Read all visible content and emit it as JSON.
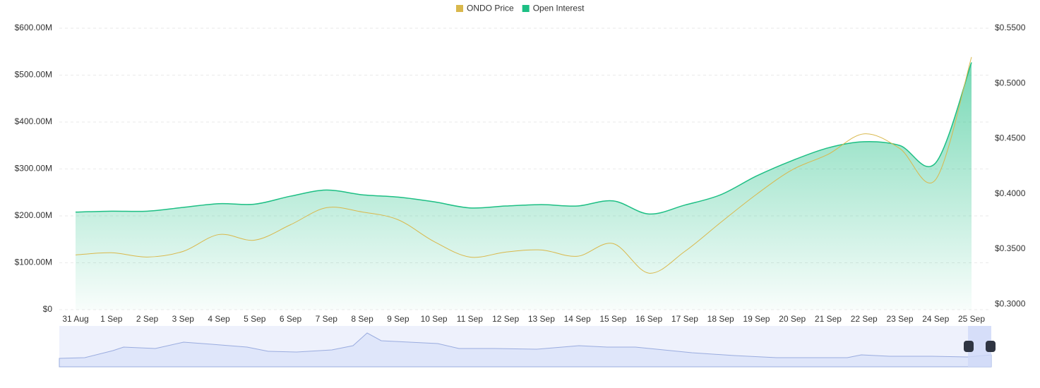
{
  "chart_data": {
    "type": "line",
    "categories": [
      "31 Aug",
      "1 Sep",
      "2 Sep",
      "3 Sep",
      "4 Sep",
      "5 Sep",
      "6 Sep",
      "7 Sep",
      "8 Sep",
      "9 Sep",
      "10 Sep",
      "11 Sep",
      "12 Sep",
      "13 Sep",
      "14 Sep",
      "15 Sep",
      "16 Sep",
      "17 Sep",
      "18 Sep",
      "19 Sep",
      "20 Sep",
      "21 Sep",
      "22 Sep",
      "23 Sep",
      "24 Sep",
      "25 Sep"
    ],
    "series": [
      {
        "name": "ONDO Price",
        "color": "#d9b84c",
        "axis": "y2",
        "values": [
          0.3446,
          0.3466,
          0.3427,
          0.3478,
          0.3631,
          0.358,
          0.372,
          0.3874,
          0.3835,
          0.3765,
          0.3568,
          0.3427,
          0.3472,
          0.3491,
          0.3434,
          0.3549,
          0.3281,
          0.3478,
          0.374,
          0.3995,
          0.4218,
          0.4358,
          0.4543,
          0.441,
          0.4129,
          0.5239
        ]
      },
      {
        "name": "Open Interest",
        "color": "#1dbf84",
        "area": true,
        "values": [
          208,
          210,
          210,
          218,
          226,
          225,
          242,
          255,
          245,
          240,
          230,
          217,
          221,
          224,
          221,
          232,
          204,
          223,
          245,
          285,
          318,
          345,
          358,
          350,
          313,
          527
        ]
      }
    ],
    "ylim": [
      0,
      600
    ],
    "yticks": [
      {
        "value": 0,
        "label": "$0"
      },
      {
        "value": 100,
        "label": "$100.00M"
      },
      {
        "value": 200,
        "label": "$200.00M"
      },
      {
        "value": 300,
        "label": "$300.00M"
      },
      {
        "value": 400,
        "label": "$400.00M"
      },
      {
        "value": 500,
        "label": "$500.00M"
      },
      {
        "value": 600,
        "label": "$600.00M"
      }
    ],
    "y2lim": [
      0.295,
      0.55
    ],
    "y2ticks": [
      {
        "value": 0.3,
        "label": "$0.3000"
      },
      {
        "value": 0.35,
        "label": "$0.3500"
      },
      {
        "value": 0.4,
        "label": "$0.4000"
      },
      {
        "value": 0.45,
        "label": "$0.4500"
      },
      {
        "value": 0.5,
        "label": "$0.5000"
      },
      {
        "value": 0.55,
        "label": "$0.5500"
      }
    ],
    "grid": true
  }
}
